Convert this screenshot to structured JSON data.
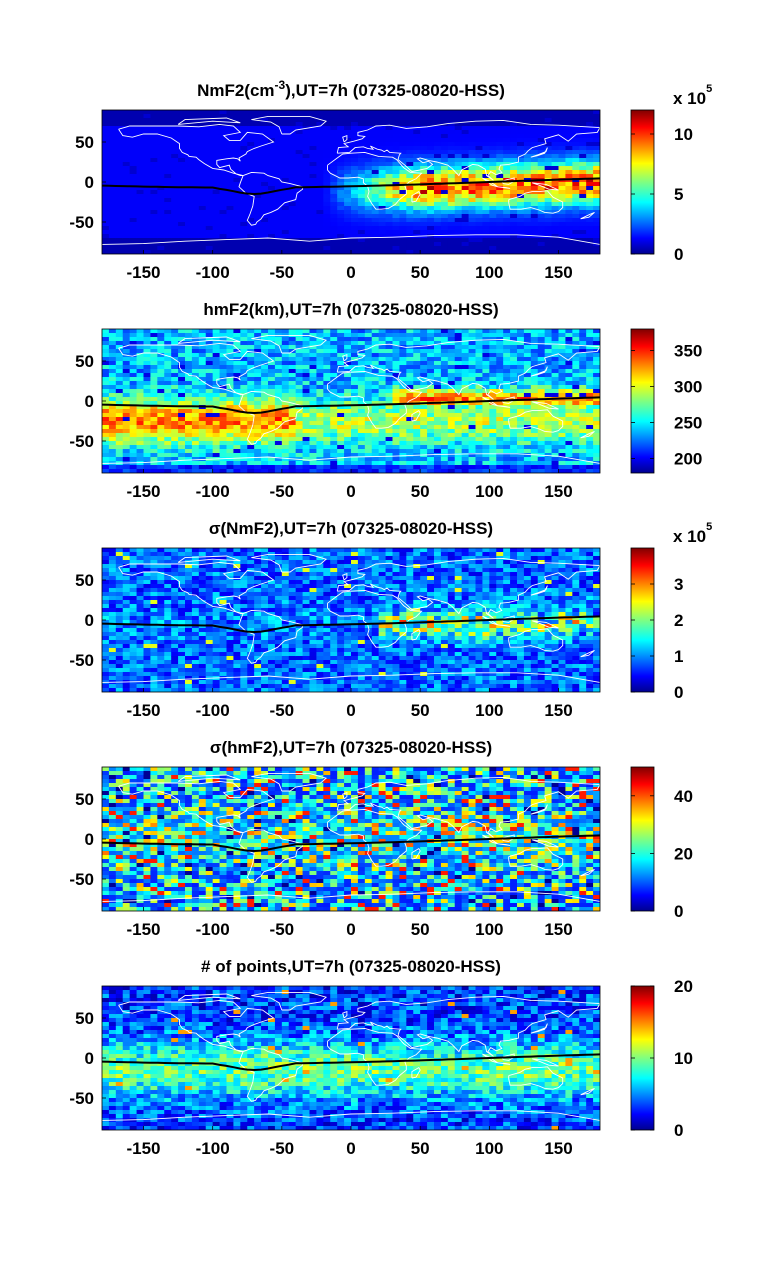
{
  "figure": {
    "colormap": "jet",
    "background": "#ffffff",
    "coastline_color": "#ffffff",
    "equator_color": "#000000"
  },
  "chart_data": [
    {
      "type": "heatmap",
      "title_parts": [
        "NmF2(cm",
        "-3",
        "),UT=7h (07325-08020-HSS)"
      ],
      "xlim": [
        -180,
        180
      ],
      "ylim": [
        -90,
        90
      ],
      "xticks": [
        -150,
        -100,
        -50,
        0,
        50,
        100,
        150
      ],
      "yticks": [
        50,
        0,
        -50
      ],
      "colorbar": {
        "ticks": [
          0,
          5,
          10
        ],
        "range": [
          0,
          12
        ],
        "multiplier_base": "x 10",
        "multiplier_exp": "5"
      },
      "field": "nmf2"
    },
    {
      "type": "heatmap",
      "title_parts": [
        "hmF2(km),UT=7h (07325-08020-HSS)"
      ],
      "xlim": [
        -180,
        180
      ],
      "ylim": [
        -90,
        90
      ],
      "xticks": [
        -150,
        -100,
        -50,
        0,
        50,
        100,
        150
      ],
      "yticks": [
        50,
        0,
        -50
      ],
      "colorbar": {
        "ticks": [
          200,
          250,
          300,
          350
        ],
        "range": [
          180,
          380
        ]
      },
      "field": "hmf2"
    },
    {
      "type": "heatmap",
      "title_parts": [
        "σ(NmF2),UT=7h (07325-08020-HSS)"
      ],
      "xlim": [
        -180,
        180
      ],
      "ylim": [
        -90,
        90
      ],
      "xticks": [
        -150,
        -100,
        -50,
        0,
        50,
        100,
        150
      ],
      "yticks": [
        50,
        0,
        -50
      ],
      "colorbar": {
        "ticks": [
          0,
          1,
          2,
          3
        ],
        "range": [
          0,
          4
        ],
        "multiplier_base": "x 10",
        "multiplier_exp": "5"
      },
      "field": "sigma_nmf2"
    },
    {
      "type": "heatmap",
      "title_parts": [
        "σ(hmF2),UT=7h (07325-08020-HSS)"
      ],
      "xlim": [
        -180,
        180
      ],
      "ylim": [
        -90,
        90
      ],
      "xticks": [
        -150,
        -100,
        -50,
        0,
        50,
        100,
        150
      ],
      "yticks": [
        50,
        0,
        -50
      ],
      "colorbar": {
        "ticks": [
          0,
          20,
          40
        ],
        "range": [
          0,
          50
        ]
      },
      "field": "sigma_hmf2"
    },
    {
      "type": "heatmap",
      "title_parts": [
        "# of points,UT=7h (07325-08020-HSS)"
      ],
      "xlim": [
        -180,
        180
      ],
      "ylim": [
        -90,
        90
      ],
      "xticks": [
        -150,
        -100,
        -50,
        0,
        50,
        100,
        150
      ],
      "yticks": [
        50,
        0,
        -50
      ],
      "colorbar": {
        "ticks": [
          0,
          10,
          20
        ],
        "range": [
          0,
          20
        ]
      },
      "field": "npoints"
    }
  ]
}
